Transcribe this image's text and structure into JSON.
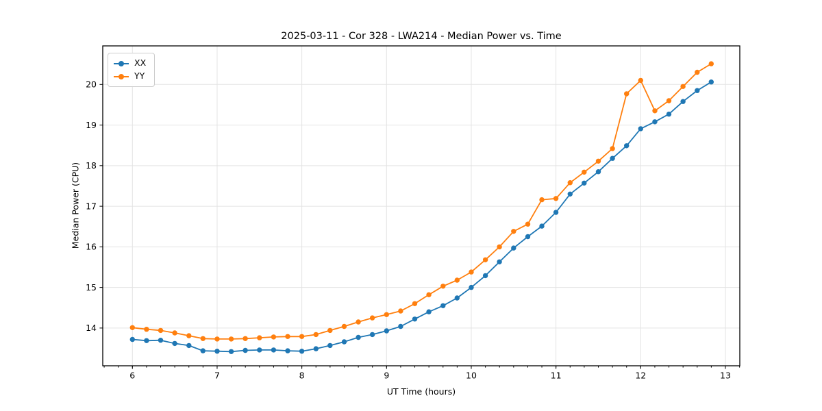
{
  "chart_data": {
    "type": "line",
    "title": "2025-03-11 - Cor 328 - LWA214 - Median Power vs. Time",
    "xlabel": "UT Time (hours)",
    "ylabel": "Median Power (CPU)",
    "xlim": [
      5.65,
      13.17
    ],
    "ylim": [
      13.07,
      20.95
    ],
    "x_ticks": [
      6,
      7,
      8,
      9,
      10,
      11,
      12,
      13
    ],
    "y_ticks": [
      14,
      15,
      16,
      17,
      18,
      19,
      20
    ],
    "x_minor_step": 0.16667,
    "grid": true,
    "legend_position": "upper-left",
    "marker": "circle",
    "x": [
      6,
      6.167,
      6.333,
      6.5,
      6.667,
      6.833,
      7,
      7.167,
      7.333,
      7.5,
      7.667,
      7.833,
      8,
      8.167,
      8.333,
      8.5,
      8.667,
      8.833,
      9,
      9.167,
      9.333,
      9.5,
      9.667,
      9.833,
      10,
      10.167,
      10.333,
      10.5,
      10.667,
      10.833,
      11,
      11.167,
      11.333,
      11.5,
      11.667,
      11.833,
      12,
      12.167,
      12.333,
      12.5,
      12.667,
      12.833
    ],
    "series": [
      {
        "name": "XX",
        "color": "#1f77b4",
        "values": [
          13.72,
          13.69,
          13.7,
          13.62,
          13.57,
          13.44,
          13.43,
          13.42,
          13.45,
          13.46,
          13.46,
          13.44,
          13.43,
          13.49,
          13.57,
          13.66,
          13.77,
          13.84,
          13.93,
          14.04,
          14.22,
          14.4,
          14.55,
          14.74,
          15.0,
          15.29,
          15.63,
          15.97,
          16.25,
          16.51,
          16.85,
          17.3,
          17.57,
          17.85,
          18.18,
          18.49,
          18.91,
          19.08,
          19.27,
          19.58,
          19.85,
          20.06
        ]
      },
      {
        "name": "YY",
        "color": "#ff7f0e",
        "values": [
          14.01,
          13.97,
          13.94,
          13.88,
          13.81,
          13.74,
          13.73,
          13.73,
          13.74,
          13.76,
          13.78,
          13.79,
          13.79,
          13.84,
          13.94,
          14.04,
          14.15,
          14.25,
          14.33,
          14.42,
          14.6,
          14.82,
          15.03,
          15.18,
          15.38,
          15.68,
          16.0,
          16.38,
          16.56,
          17.16,
          17.19,
          17.58,
          17.84,
          18.11,
          18.42,
          19.77,
          20.1,
          19.35,
          19.6,
          19.95,
          20.3,
          20.51
        ]
      }
    ]
  },
  "colors": {
    "background": "#ffffff",
    "spine": "#000000",
    "grid": "#e3e3e3",
    "tick": "#000000",
    "text": "#000000",
    "legend_border": "#cccccc"
  }
}
